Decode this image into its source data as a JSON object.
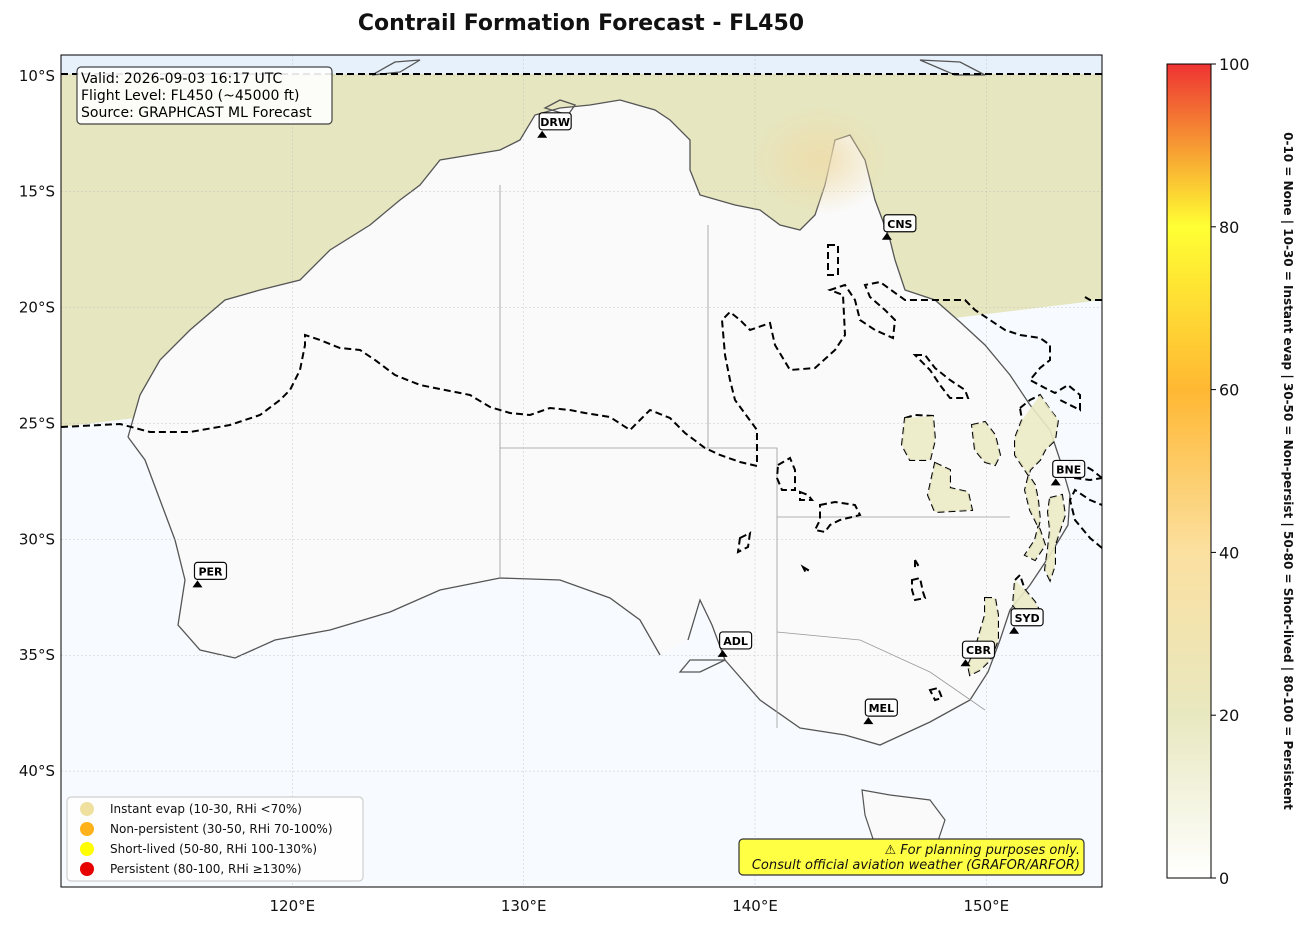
{
  "title": "Contrail Formation Forecast - FL450",
  "info_box": {
    "valid": "Valid: 2026-09-03 16:17 UTC",
    "flight_level": "Flight Level: FL450 (~45000 ft)",
    "source": "Source: GRAPHCAST ML Forecast"
  },
  "map_extent": {
    "lon_min": 110,
    "lon_max": 155,
    "lat_min": -45,
    "lat_max": -9.1
  },
  "lon_ticks": [
    {
      "value": 120,
      "label": "120°E"
    },
    {
      "value": 130,
      "label": "130°E"
    },
    {
      "value": 140,
      "label": "140°E"
    },
    {
      "value": 150,
      "label": "150°E"
    }
  ],
  "lat_ticks": [
    {
      "value": -10,
      "label": "10°S"
    },
    {
      "value": -15,
      "label": "15°S"
    },
    {
      "value": -20,
      "label": "20°S"
    },
    {
      "value": -25,
      "label": "25°S"
    },
    {
      "value": -30,
      "label": "30°S"
    },
    {
      "value": -35,
      "label": "35°S"
    },
    {
      "value": -40,
      "label": "40°S"
    }
  ],
  "cities": [
    {
      "code": "DRW",
      "lon": 130.8,
      "lat": -12.5
    },
    {
      "code": "CNS",
      "lon": 145.7,
      "lat": -16.9
    },
    {
      "code": "BNE",
      "lon": 153.0,
      "lat": -27.5
    },
    {
      "code": "PER",
      "lon": 115.9,
      "lat": -31.9
    },
    {
      "code": "SYD",
      "lon": 151.2,
      "lat": -33.9
    },
    {
      "code": "ADL",
      "lon": 138.6,
      "lat": -34.9
    },
    {
      "code": "CBR",
      "lon": 149.1,
      "lat": -35.3
    },
    {
      "code": "MEL",
      "lon": 144.9,
      "lat": -37.8
    }
  ],
  "legend": [
    {
      "label": "Instant evap (10-30, RHi <70%)",
      "color": "#f0e0a0"
    },
    {
      "label": "Non-persistent (30-50, RHi 70-100%)",
      "color": "#ffb21a"
    },
    {
      "label": "Short-lived (50-80, RHi 100-130%)",
      "color": "#ffff00"
    },
    {
      "label": "Persistent (80-100, RHi ≥130%)",
      "color": "#e60000"
    }
  ],
  "disclaimer": {
    "line1": "⚠ For planning purposes only.",
    "line2": "Consult official aviation weather (GRAFOR/ARFOR)",
    "background": "#ffff44"
  },
  "colorbar": {
    "min": 0,
    "max": 100,
    "ticks": [
      0,
      20,
      40,
      60,
      80,
      100
    ],
    "label": "0-10 = None  |  10-30 = Instant evap  |  30-50 = Non-persist  |  50-80 = Short-lived  |  80-100 = Persistent",
    "stops": [
      {
        "v": 0,
        "color": "#ffffff"
      },
      {
        "v": 20,
        "color": "#e8e8c0"
      },
      {
        "v": 40,
        "color": "#fbe0a0"
      },
      {
        "v": 60,
        "color": "#ffb833"
      },
      {
        "v": 80,
        "color": "#ffff33"
      },
      {
        "v": 100,
        "color": "#ee3333"
      }
    ]
  },
  "colors": {
    "ocean": "#f7fbff",
    "land": "#fafafa",
    "instant_evap_region": "#e6e6c0",
    "coastline": "#555555",
    "contour": "#000000"
  }
}
